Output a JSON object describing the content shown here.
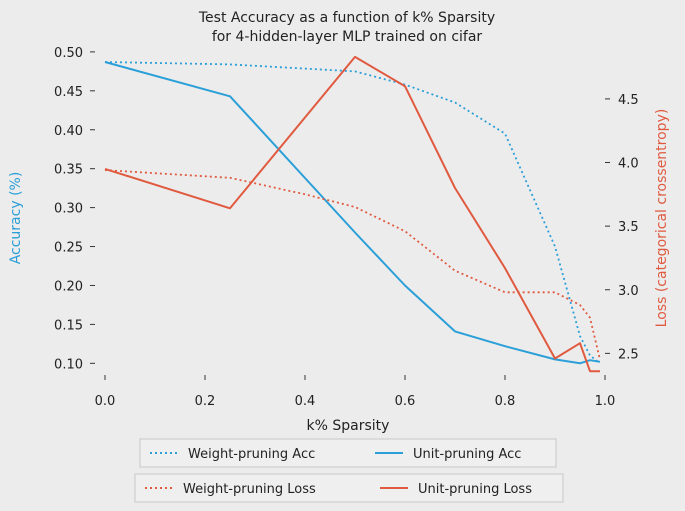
{
  "chart_data": {
    "type": "line",
    "title": "Test Accuracy as a function of k% Sparsity",
    "subtitle": "for 4-hidden-layer MLP trained on cifar",
    "xlabel": "k% Sparsity",
    "ylabel_left": "Accuracy (%)",
    "ylabel_right": "Loss (categorical crossentropy)",
    "xlim": [
      -0.02,
      1.0
    ],
    "ylim_left": [
      0.085,
      0.505
    ],
    "ylim_right": [
      2.33,
      4.9
    ],
    "x_ticks": [
      "0.0",
      "0.2",
      "0.4",
      "0.6",
      "0.8",
      "1.0"
    ],
    "y_left_ticks": [
      "0.10",
      "0.15",
      "0.20",
      "0.25",
      "0.30",
      "0.35",
      "0.40",
      "0.45",
      "0.50"
    ],
    "y_right_ticks": [
      "2.5",
      "3.0",
      "3.5",
      "4.0",
      "4.5"
    ],
    "grid": false,
    "legend": "bottom-center",
    "colors": {
      "accuracy": "#2b9fd8",
      "loss": "#e05a40",
      "left_axis_label": "#2b9fd8",
      "right_axis_label": "#e05a40"
    },
    "series": [
      {
        "name": "Weight-pruning Acc",
        "axis": "left",
        "style": "dotted",
        "color": "#2b9fd8",
        "x": [
          0.0,
          0.25,
          0.5,
          0.6,
          0.7,
          0.8,
          0.9,
          0.95,
          0.97,
          0.99
        ],
        "y": [
          0.487,
          0.484,
          0.475,
          0.458,
          0.435,
          0.395,
          0.25,
          0.135,
          0.11,
          0.1
        ]
      },
      {
        "name": "Unit-pruning Acc",
        "axis": "left",
        "style": "solid",
        "color": "#2b9fd8",
        "x": [
          0.0,
          0.25,
          0.5,
          0.6,
          0.7,
          0.8,
          0.9,
          0.95,
          0.97,
          0.99
        ],
        "y": [
          0.487,
          0.443,
          0.268,
          0.2,
          0.141,
          0.122,
          0.105,
          0.1,
          0.104,
          0.102
        ]
      },
      {
        "name": "Weight-pruning Loss",
        "axis": "right",
        "style": "dotted",
        "color": "#e05a40",
        "x": [
          0.0,
          0.25,
          0.4,
          0.5,
          0.6,
          0.7,
          0.8,
          0.9,
          0.95,
          0.97,
          0.99
        ],
        "y": [
          3.94,
          3.88,
          3.75,
          3.65,
          3.46,
          3.15,
          2.98,
          2.98,
          2.88,
          2.78,
          2.45
        ]
      },
      {
        "name": "Unit-pruning Loss",
        "axis": "right",
        "style": "solid",
        "color": "#e05a40",
        "x": [
          0.0,
          0.25,
          0.5,
          0.6,
          0.7,
          0.8,
          0.9,
          0.95,
          0.97,
          0.99
        ],
        "y": [
          3.95,
          3.64,
          4.83,
          4.6,
          3.8,
          3.17,
          2.46,
          2.58,
          2.36,
          2.36
        ]
      }
    ]
  }
}
